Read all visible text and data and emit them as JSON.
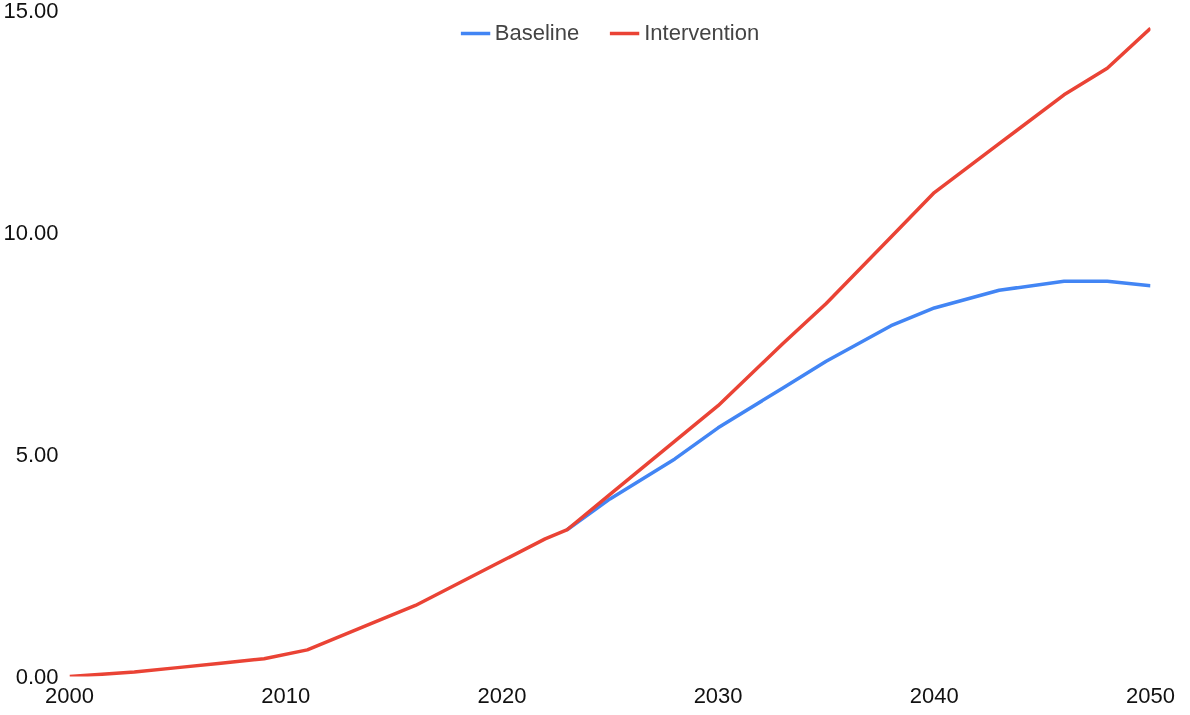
{
  "chart_data": {
    "type": "line",
    "x": [
      2000,
      2003,
      2005,
      2007,
      2009,
      2011,
      2014,
      2016,
      2018,
      2020,
      2022,
      2023,
      2025,
      2028,
      2030,
      2033,
      2035,
      2038,
      2040,
      2043,
      2046,
      2048,
      2050
    ],
    "series": [
      {
        "name": "Baseline",
        "color": "#4285f4",
        "values": [
          null,
          null,
          null,
          null,
          null,
          null,
          null,
          null,
          null,
          null,
          null,
          3.3,
          4.0,
          4.9,
          5.6,
          6.5,
          7.1,
          7.9,
          8.3,
          8.7,
          8.9,
          8.9,
          8.8
        ]
      },
      {
        "name": "Intervention",
        "color": "#ea4335",
        "values": [
          0,
          0.1,
          0.2,
          0.3,
          0.4,
          0.6,
          1.2,
          1.6,
          2.1,
          2.6,
          3.1,
          3.3,
          4.1,
          5.3,
          6.1,
          7.5,
          8.4,
          9.9,
          10.9,
          12.0,
          13.1,
          13.7,
          14.6
        ]
      }
    ],
    "xlim": [
      2000,
      2050
    ],
    "xticks": [
      2000,
      2010,
      2020,
      2030,
      2040,
      2050
    ],
    "ylim": [
      0,
      15
    ],
    "yticks": [
      {
        "value": 0,
        "label": "0.00"
      },
      {
        "value": 5,
        "label": "5.00"
      },
      {
        "value": 10,
        "label": "10.00"
      },
      {
        "value": 15,
        "label": "15.00"
      }
    ],
    "grid": false,
    "legend": "top",
    "line_style": "solid"
  }
}
